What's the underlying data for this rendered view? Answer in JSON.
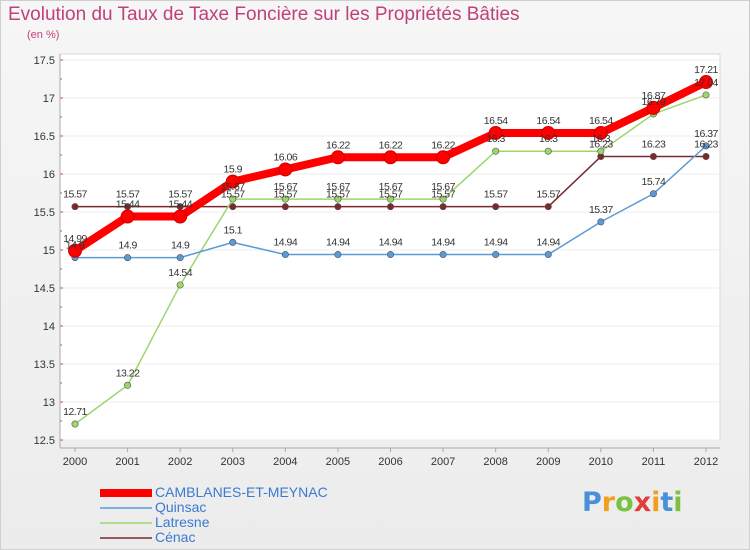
{
  "title": "Evolution du Taux de Taxe Foncière sur les Propriétés Bâties",
  "subtitle": "(en %)",
  "logo": "Proxiti",
  "chart_data": {
    "type": "line",
    "title": "Evolution du Taux de Taxe Foncière sur les Propriétés Bâties",
    "ylabel": "(en %)",
    "xlabel": "",
    "x": [
      "2000",
      "2001",
      "2002",
      "2003",
      "2004",
      "2005",
      "2006",
      "2007",
      "2008",
      "2009",
      "2010",
      "2011",
      "2012"
    ],
    "ylim": [
      12.5,
      17.5
    ],
    "yticks": [
      "12.5",
      "13",
      "13.5",
      "14",
      "14.5",
      "15",
      "15.5",
      "16",
      "16.5",
      "17",
      "17.5"
    ],
    "series": [
      {
        "name": "CAMBLANES-ET-MEYNAC",
        "color": "#ff0000",
        "labels": [
          "14.99",
          "15.44",
          "15.44",
          "15.9",
          "16.06",
          "16.22",
          "16.22",
          "16.22",
          "16.54",
          "16.54",
          "16.54",
          "16.87",
          "17.21"
        ],
        "values": [
          14.99,
          15.44,
          15.44,
          15.9,
          16.06,
          16.22,
          16.22,
          16.22,
          16.54,
          16.54,
          16.54,
          16.87,
          17.21
        ]
      },
      {
        "name": "Quinsac",
        "color": "#5b9bd5",
        "labels": [
          "14.9",
          "14.9",
          "14.9",
          "15.1",
          "14.94",
          "14.94",
          "14.94",
          "14.94",
          "14.94",
          "14.94",
          "15.37",
          "15.74",
          "16.37"
        ],
        "values": [
          14.9,
          14.9,
          14.9,
          15.1,
          14.94,
          14.94,
          14.94,
          14.94,
          14.94,
          14.94,
          15.37,
          15.74,
          16.37
        ]
      },
      {
        "name": "Latresne",
        "color": "#9cd66b",
        "labels": [
          "12.71",
          "13.22",
          "14.54",
          "15.67",
          "15.67",
          "15.67",
          "15.67",
          "15.67",
          "16.3",
          "16.3",
          "16.3",
          "16.79",
          "17.04"
        ],
        "values": [
          12.71,
          13.22,
          14.54,
          15.67,
          15.67,
          15.67,
          15.67,
          15.67,
          16.3,
          16.3,
          16.3,
          16.79,
          17.04
        ]
      },
      {
        "name": "Cénac",
        "color": "#7a2a2a",
        "labels": [
          "15.57",
          "15.57",
          "15.57",
          "15.57",
          "15.57",
          "15.57",
          "15.57",
          "15.57",
          "15.57",
          "15.57",
          "16.23",
          "16.23",
          "16.23"
        ],
        "values": [
          15.57,
          15.57,
          15.57,
          15.57,
          15.57,
          15.57,
          15.57,
          15.57,
          15.57,
          15.57,
          16.23,
          16.23,
          16.23
        ]
      }
    ]
  }
}
